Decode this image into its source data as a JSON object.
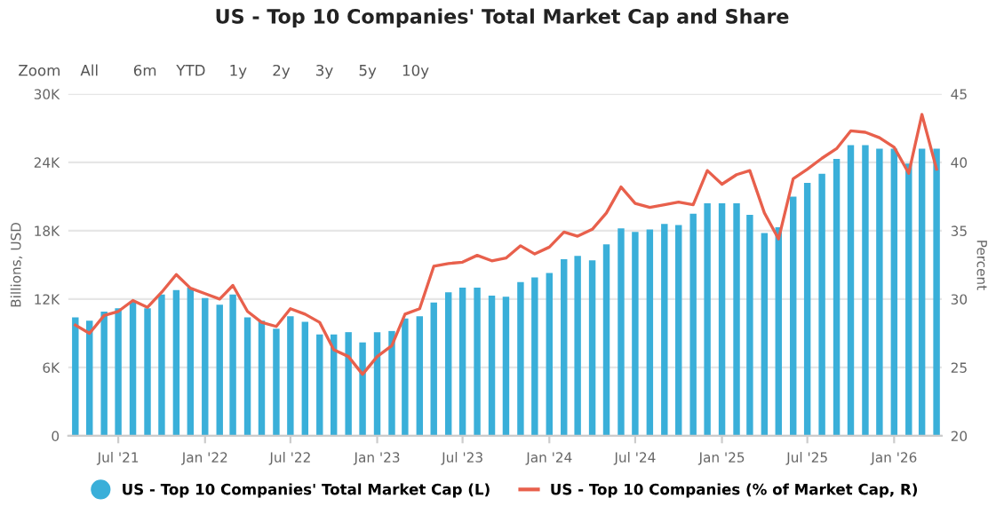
{
  "chart_data": {
    "type": "bar",
    "title": "US - Top 10 Companies' Total Market Cap and Share",
    "ylabel": "Billions, USD",
    "y2label": "Percent",
    "annotations": [
      "Zoom",
      "All",
      "6m",
      "YTD",
      "1y",
      "2y",
      "3y",
      "5y",
      "10y"
    ],
    "x": [
      "2021-04",
      "2021-05",
      "2021-06",
      "2021-07",
      "2021-08",
      "2021-09",
      "2021-10",
      "2021-11",
      "2021-12",
      "2022-01",
      "2022-02",
      "2022-03",
      "2022-04",
      "2022-05",
      "2022-06",
      "2022-07",
      "2022-08",
      "2022-09",
      "2022-10",
      "2022-11",
      "2022-12",
      "2023-01",
      "2023-02",
      "2023-03",
      "2023-04",
      "2023-05",
      "2023-06",
      "2023-07",
      "2023-08",
      "2023-09",
      "2023-10",
      "2023-11",
      "2023-12",
      "2024-01",
      "2024-02",
      "2024-03",
      "2024-04",
      "2024-05",
      "2024-06",
      "2024-07",
      "2024-08",
      "2024-09",
      "2024-10",
      "2024-11",
      "2024-12",
      "2025-01",
      "2025-02",
      "2025-03",
      "2025-04",
      "2025-05",
      "2025-06",
      "2025-07",
      "2025-08",
      "2025-09",
      "2025-10",
      "2025-11",
      "2025-12",
      "2026-01",
      "2026-02",
      "2026-03",
      "2026-04"
    ],
    "series": [
      {
        "name": "US - Top 10 Companies' Total Market Cap (L)",
        "color": "#3aafd9",
        "values": [
          10.4,
          10.1,
          10.9,
          11.2,
          11.8,
          11.2,
          12.4,
          12.8,
          13.0,
          12.1,
          11.5,
          12.4,
          10.4,
          10.1,
          9.4,
          10.5,
          10.0,
          8.9,
          8.9,
          9.1,
          8.2,
          9.1,
          9.2,
          10.3,
          10.5,
          11.7,
          12.6,
          13.0,
          13.0,
          12.3,
          12.2,
          13.5,
          13.9,
          14.3,
          15.5,
          15.8,
          15.4,
          16.8,
          18.2,
          17.9,
          18.1,
          18.6,
          18.5,
          19.5,
          20.4,
          20.4,
          20.4,
          19.4,
          17.8,
          18.3,
          21.0,
          22.2,
          23.0,
          24.3,
          25.5,
          25.5,
          25.2,
          25.2,
          23.9,
          25.2,
          25.2
        ]
      },
      {
        "name": "US - Top 10 Companies (% of Market Cap, R)",
        "type": "line",
        "axis": "y2",
        "color": "#e8604c",
        "values": [
          28.1,
          27.5,
          28.8,
          29.1,
          29.9,
          29.4,
          30.5,
          31.8,
          30.8,
          30.4,
          30.0,
          31.0,
          29.1,
          28.3,
          28.0,
          29.3,
          28.9,
          28.3,
          26.3,
          25.8,
          24.5,
          25.8,
          26.6,
          28.9,
          29.3,
          32.4,
          32.6,
          32.7,
          33.2,
          32.8,
          33.0,
          33.9,
          33.3,
          33.8,
          34.9,
          34.6,
          35.1,
          36.3,
          38.2,
          37.0,
          36.7,
          36.9,
          37.1,
          36.9,
          39.4,
          38.4,
          39.1,
          39.4,
          36.3,
          34.4,
          38.8,
          39.5,
          40.3,
          41.0,
          42.3,
          42.2,
          41.8,
          41.1,
          39.2,
          43.5,
          39.5
        ]
      }
    ],
    "xlim": [
      "2021-03-17",
      "2026-04-12"
    ],
    "xticks": [
      {
        "value": "2021-07",
        "label": "Jul '21"
      },
      {
        "value": "2022-01",
        "label": "Jan '22"
      },
      {
        "value": "2022-07",
        "label": "Jul '22"
      },
      {
        "value": "2023-01",
        "label": "Jan '23"
      },
      {
        "value": "2023-07",
        "label": "Jul '23"
      },
      {
        "value": "2024-01",
        "label": "Jan '24"
      },
      {
        "value": "2024-07",
        "label": "Jul '24"
      },
      {
        "value": "2025-01",
        "label": "Jan '25"
      },
      {
        "value": "2025-07",
        "label": "Jul '25"
      },
      {
        "value": "2026-01",
        "label": "Jan '26"
      }
    ],
    "ylim": [
      0,
      30
    ],
    "yticks": [
      {
        "value": 0,
        "label": "0"
      },
      {
        "value": 6,
        "label": "6K"
      },
      {
        "value": 12,
        "label": "12K"
      },
      {
        "value": 18,
        "label": "18K"
      },
      {
        "value": 24,
        "label": "24K"
      },
      {
        "value": 30,
        "label": "30K"
      }
    ],
    "y2lim": [
      20,
      45
    ],
    "y2ticks": [
      20,
      25,
      30,
      35,
      40,
      45
    ],
    "grid": "y",
    "legend": "bottom",
    "marker": "none",
    "line_style": "solid"
  }
}
